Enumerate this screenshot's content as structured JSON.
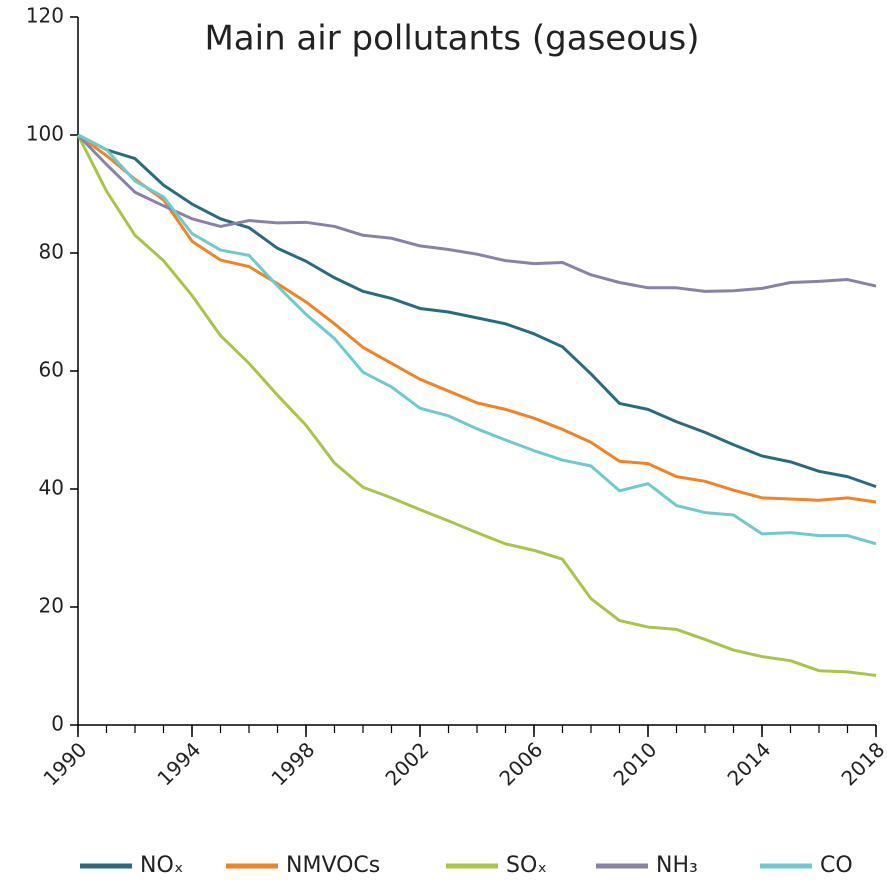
{
  "chart_data": {
    "type": "line",
    "title": "Main air pollutants (gaseous)",
    "x": [
      1990,
      1991,
      1992,
      1993,
      1994,
      1995,
      1996,
      1997,
      1998,
      1999,
      2000,
      2001,
      2002,
      2003,
      2004,
      2005,
      2006,
      2007,
      2008,
      2009,
      2010,
      2011,
      2012,
      2013,
      2014,
      2015,
      2016,
      2017,
      2018
    ],
    "series": [
      {
        "name": "NOₓ",
        "color": "#2a6b83",
        "values": [
          100,
          97.5,
          96,
          91.5,
          88.3,
          85.8,
          84.3,
          80.8,
          78.6,
          75.8,
          73.5,
          72.3,
          70.6,
          70,
          69,
          68,
          66.3,
          64.1,
          59.5,
          54.5,
          53.5,
          51.4,
          49.6,
          47.5,
          45.6,
          44.6,
          43,
          42.1,
          40.4
        ]
      },
      {
        "name": "NMVOCs",
        "color": "#f58220",
        "values": [
          100,
          96.5,
          92.5,
          89,
          82,
          78.8,
          77.7,
          74.8,
          71.7,
          68,
          64,
          61.3,
          58.6,
          56.6,
          54.6,
          53.5,
          52,
          50.1,
          47.9,
          44.7,
          44.3,
          42.1,
          41.3,
          39.8,
          38.5,
          38.3,
          38.1,
          38.5,
          37.8
        ]
      },
      {
        "name": "SOₓ",
        "color": "#a8c545",
        "values": [
          100,
          90.5,
          83,
          78.7,
          72.8,
          66,
          61.3,
          55.9,
          50.8,
          44.4,
          40.3,
          38.5,
          36.5,
          34.6,
          32.6,
          30.7,
          29.6,
          28.1,
          21.4,
          17.7,
          16.6,
          16.2,
          14.5,
          12.7,
          11.6,
          10.9,
          9.2,
          9.0,
          8.4
        ]
      },
      {
        "name": "NH₃",
        "color": "#8a81a8",
        "values": [
          100,
          95,
          90.3,
          88,
          85.8,
          84.5,
          85.5,
          85.1,
          85.2,
          84.5,
          83,
          82.5,
          81.2,
          80.6,
          79.8,
          78.7,
          78.2,
          78.4,
          76.3,
          75,
          74.1,
          74.1,
          73.5,
          73.6,
          74,
          75,
          75.2,
          75.5,
          74.4
        ]
      },
      {
        "name": "CO",
        "color": "#6ccbcf",
        "values": [
          100,
          97.5,
          92.2,
          89.5,
          83.3,
          80.5,
          79.6,
          74.4,
          69.6,
          65.5,
          59.8,
          57.3,
          53.7,
          52.4,
          50.2,
          48.3,
          46.5,
          44.9,
          43.9,
          39.7,
          40.9,
          37.2,
          36,
          35.6,
          32.4,
          32.6,
          32.1,
          32.1,
          30.7
        ]
      }
    ],
    "xlim": [
      1990,
      2018
    ],
    "xticks": [
      1990,
      1994,
      1998,
      2002,
      2006,
      2010,
      2014,
      2018
    ],
    "ylim": [
      0,
      120
    ],
    "yticks": [
      0,
      20,
      40,
      60,
      80,
      100,
      120
    ],
    "legend": "bottom"
  }
}
